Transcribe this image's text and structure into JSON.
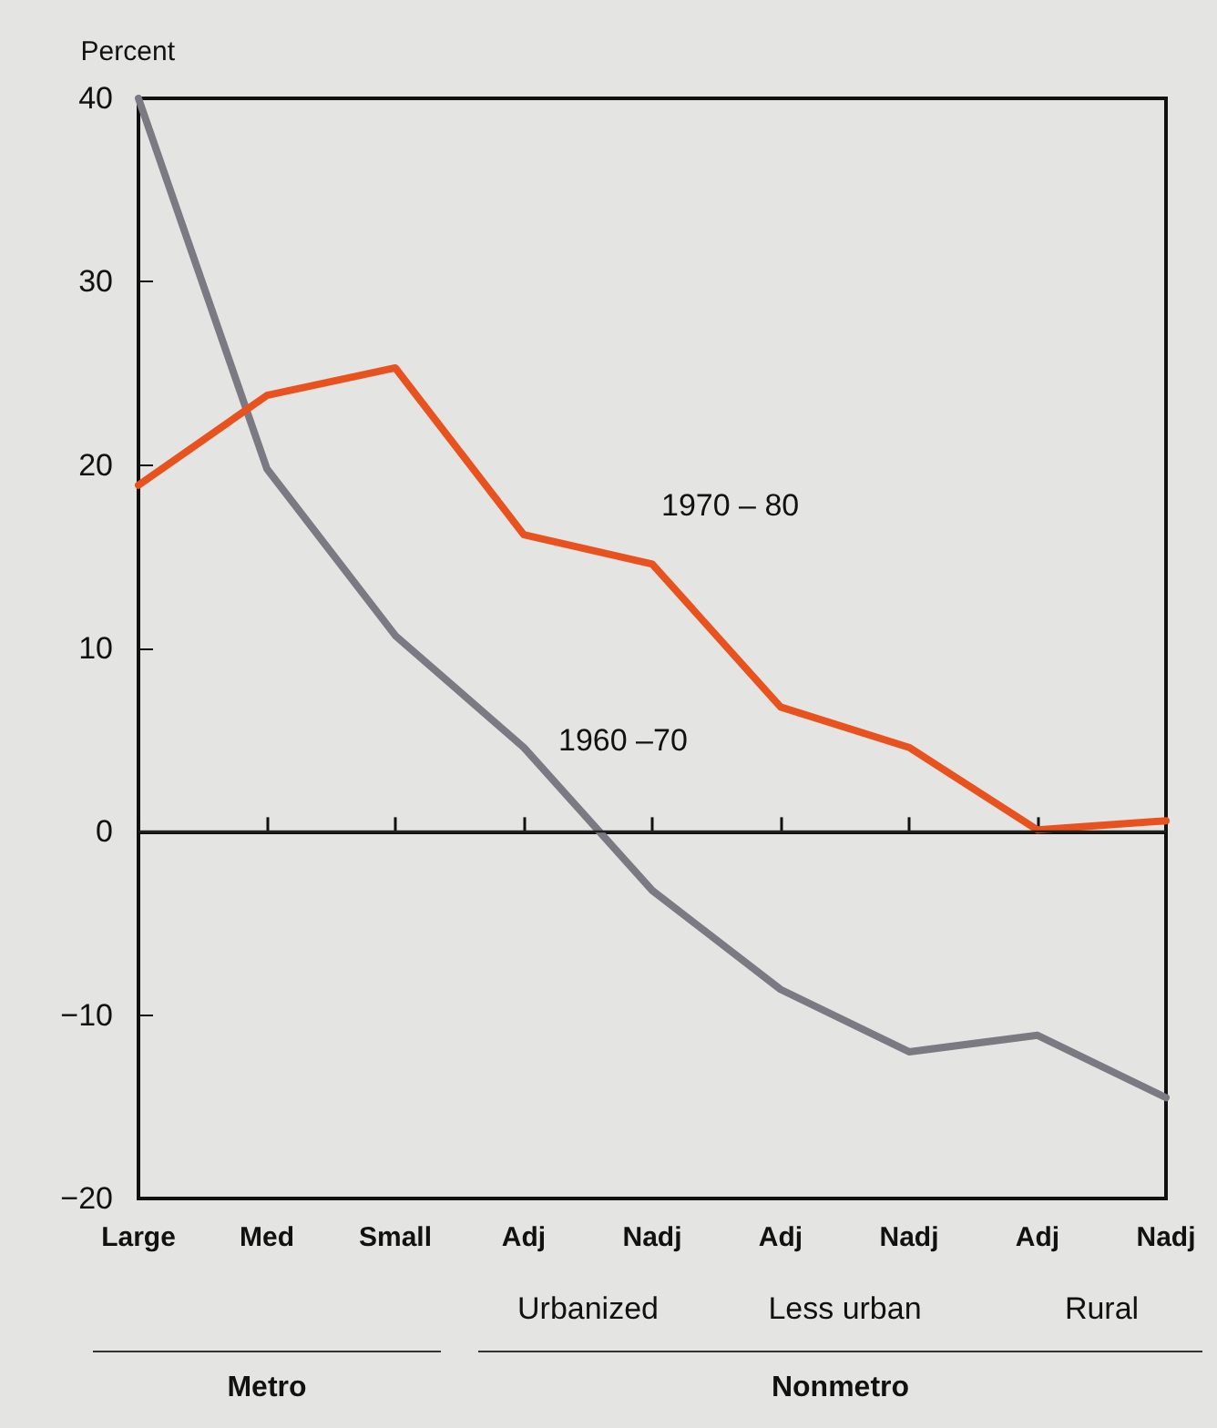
{
  "chart_data": {
    "type": "line",
    "ylabel": "Percent",
    "categories": [
      "Large",
      "Med",
      "Small",
      "Adj",
      "Nadj",
      "Adj",
      "Nadj",
      "Adj",
      "Nadj"
    ],
    "series": [
      {
        "name": "1960 –70",
        "color": "#7b7a82",
        "values": [
          40,
          19.8,
          10.7,
          4.6,
          -3.2,
          -8.6,
          -12,
          -11.1,
          -14.5
        ]
      },
      {
        "name": "1970 – 80",
        "color": "#e8521e",
        "values": [
          18.9,
          23.8,
          25.3,
          16.2,
          14.6,
          6.8,
          4.6,
          0.1,
          0.6
        ]
      }
    ],
    "ylim": [
      -20,
      40
    ],
    "yticks": [
      -20,
      -10,
      0,
      10,
      20,
      30,
      40
    ],
    "grid": false,
    "legend": false,
    "marker": "none",
    "line_style": "solid",
    "ref_lines": [
      {
        "axis": "y",
        "value": 0,
        "color": "#222222"
      }
    ],
    "annotations": [
      "Urbanized",
      "Less urban",
      "Rural",
      "Metro",
      "Nonmetro"
    ]
  }
}
